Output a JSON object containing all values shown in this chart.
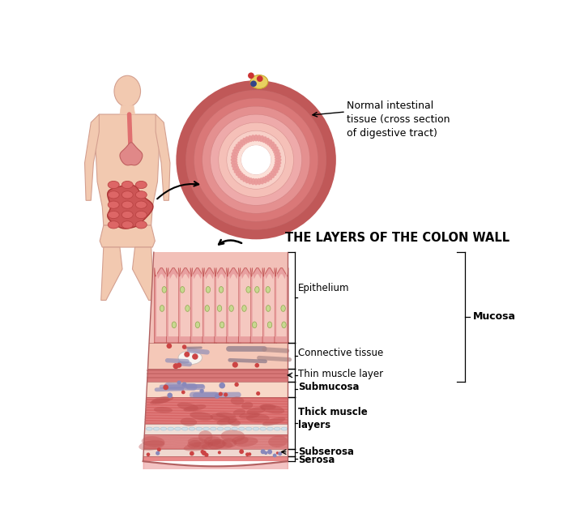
{
  "bg_color": "#ffffff",
  "title": "THE LAYERS OF THE COLON WALL",
  "title_fontsize": 10.5,
  "cross_section_label": "Normal intestinal\ntissue (cross section\nof digestive tract)",
  "mucosa_label": "Mucosa",
  "body_skin_color": "#f2c9b0",
  "body_outline_color": "#d4a090",
  "esophagus_color": "#e07878",
  "stomach_color": "#e08080",
  "intestine_color": "#cc5555",
  "intestine_bg": "#e07070",
  "cs_rings": [
    "#c05858",
    "#cd6868",
    "#da7878",
    "#e49090",
    "#eeaaaa",
    "#f5c0b8",
    "#f8d0c8",
    "#fce0d8",
    "#ffffff"
  ],
  "cs_radii": [
    0.98,
    0.86,
    0.76,
    0.66,
    0.56,
    0.46,
    0.36,
    0.27,
    0.18
  ],
  "layer_colors": {
    "epithelium_bg": "#f2c0b8",
    "villi_outer": "#e8a0a0",
    "villi_inner": "#f5c8c0",
    "villi_edge": "#c86060",
    "goblet_cell": "#c8d890",
    "connective_bg": "#f5c8b8",
    "white_blob": "#f8f4f0",
    "purple_vessel": "#9090b8",
    "thin_muscle": "#d87878",
    "thin_muscle_line": "#c06060",
    "submucosa_bg": "#f8d8c8",
    "red_blood": "#cc4444",
    "blue_vessel": "#8888bb",
    "thick_muscle1": "#d86868",
    "thick_muscle1_fiber": "#e89090",
    "thick_muscle1_dark": "#c05050",
    "separator_band": "#f0e0d8",
    "thick_muscle2": "#d47070",
    "thick_muscle2_fiber": "#e8a0a0",
    "subserosa_bg": "#f0d8d0",
    "serosa_bg": "#e88888"
  },
  "arrow_color": "black",
  "label_color": "black"
}
